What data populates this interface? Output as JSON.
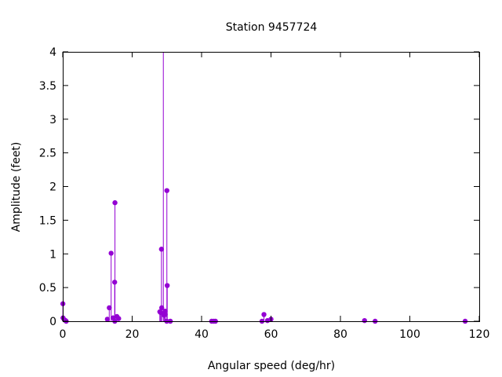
{
  "chart_data": {
    "type": "scatter",
    "style": "impulses-with-points",
    "title": "Station 9457724",
    "xlabel": "Angular speed (deg/hr)",
    "ylabel": "Amplitude (feet)",
    "xlim": [
      0,
      120
    ],
    "ylim": [
      0,
      4
    ],
    "xticks": [
      "0",
      "20",
      "40",
      "60",
      "80",
      "100",
      "120"
    ],
    "yticks": [
      "0",
      "0.5",
      "1",
      "1.5",
      "2",
      "2.5",
      "3",
      "3.5",
      "4"
    ],
    "grid": false,
    "legend": "none",
    "color": "#9400d3",
    "series": [
      {
        "points": [
          [
            0.04,
            0.26
          ],
          [
            0.08,
            0.05
          ],
          [
            0.5,
            0.02
          ],
          [
            0.8,
            0.01
          ],
          [
            1.0,
            0.0
          ],
          [
            12.85,
            0.03
          ],
          [
            13.4,
            0.2
          ],
          [
            13.94,
            1.01
          ],
          [
            14.5,
            0.05
          ],
          [
            14.96,
            0.58
          ],
          [
            15.0,
            0.0
          ],
          [
            15.04,
            1.76
          ],
          [
            15.6,
            0.07
          ],
          [
            16.1,
            0.04
          ],
          [
            27.97,
            0.14
          ],
          [
            28.2,
            0.13
          ],
          [
            28.44,
            1.07
          ],
          [
            28.51,
            0.2
          ],
          [
            28.98,
            4.0
          ],
          [
            29.2,
            0.09
          ],
          [
            29.46,
            0.12
          ],
          [
            29.5,
            0.15
          ],
          [
            29.53,
            0.1
          ],
          [
            29.96,
            0.0
          ],
          [
            30.0,
            1.94
          ],
          [
            30.1,
            0.53
          ],
          [
            31.0,
            0.0
          ],
          [
            42.9,
            0.0
          ],
          [
            43.5,
            0.0
          ],
          [
            44.0,
            0.0
          ],
          [
            57.4,
            0.0
          ],
          [
            57.97,
            0.1
          ],
          [
            58.98,
            0.01
          ],
          [
            60.0,
            0.03
          ],
          [
            86.95,
            0.01
          ],
          [
            90.0,
            0.0
          ],
          [
            115.94,
            0.0
          ]
        ]
      }
    ]
  }
}
